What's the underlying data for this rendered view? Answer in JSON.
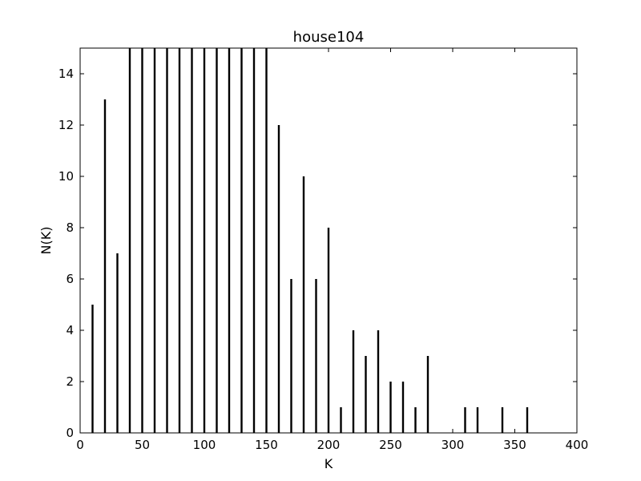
{
  "chart_data": {
    "type": "bar",
    "title": "house104",
    "xlabel": "K",
    "ylabel": "N(K)",
    "xlim": [
      0,
      400
    ],
    "ylim": [
      0,
      15
    ],
    "xticks": [
      0,
      50,
      100,
      150,
      200,
      250,
      300,
      350,
      400
    ],
    "yticks": [
      0,
      2,
      4,
      6,
      8,
      10,
      12,
      14
    ],
    "grid": false,
    "bar_color": "#000000",
    "x": [
      10,
      20,
      30,
      40,
      50,
      60,
      70,
      80,
      90,
      100,
      110,
      120,
      130,
      140,
      150,
      160,
      170,
      180,
      190,
      200,
      210,
      220,
      230,
      240,
      250,
      260,
      270,
      280,
      310,
      320,
      340,
      360
    ],
    "values": [
      5,
      13,
      7,
      15,
      15,
      15,
      15,
      15,
      15,
      15,
      15,
      15,
      15,
      15,
      15,
      12,
      6,
      10,
      6,
      8,
      1,
      4,
      3,
      4,
      2,
      2,
      1,
      3,
      1,
      1,
      1,
      1
    ]
  }
}
